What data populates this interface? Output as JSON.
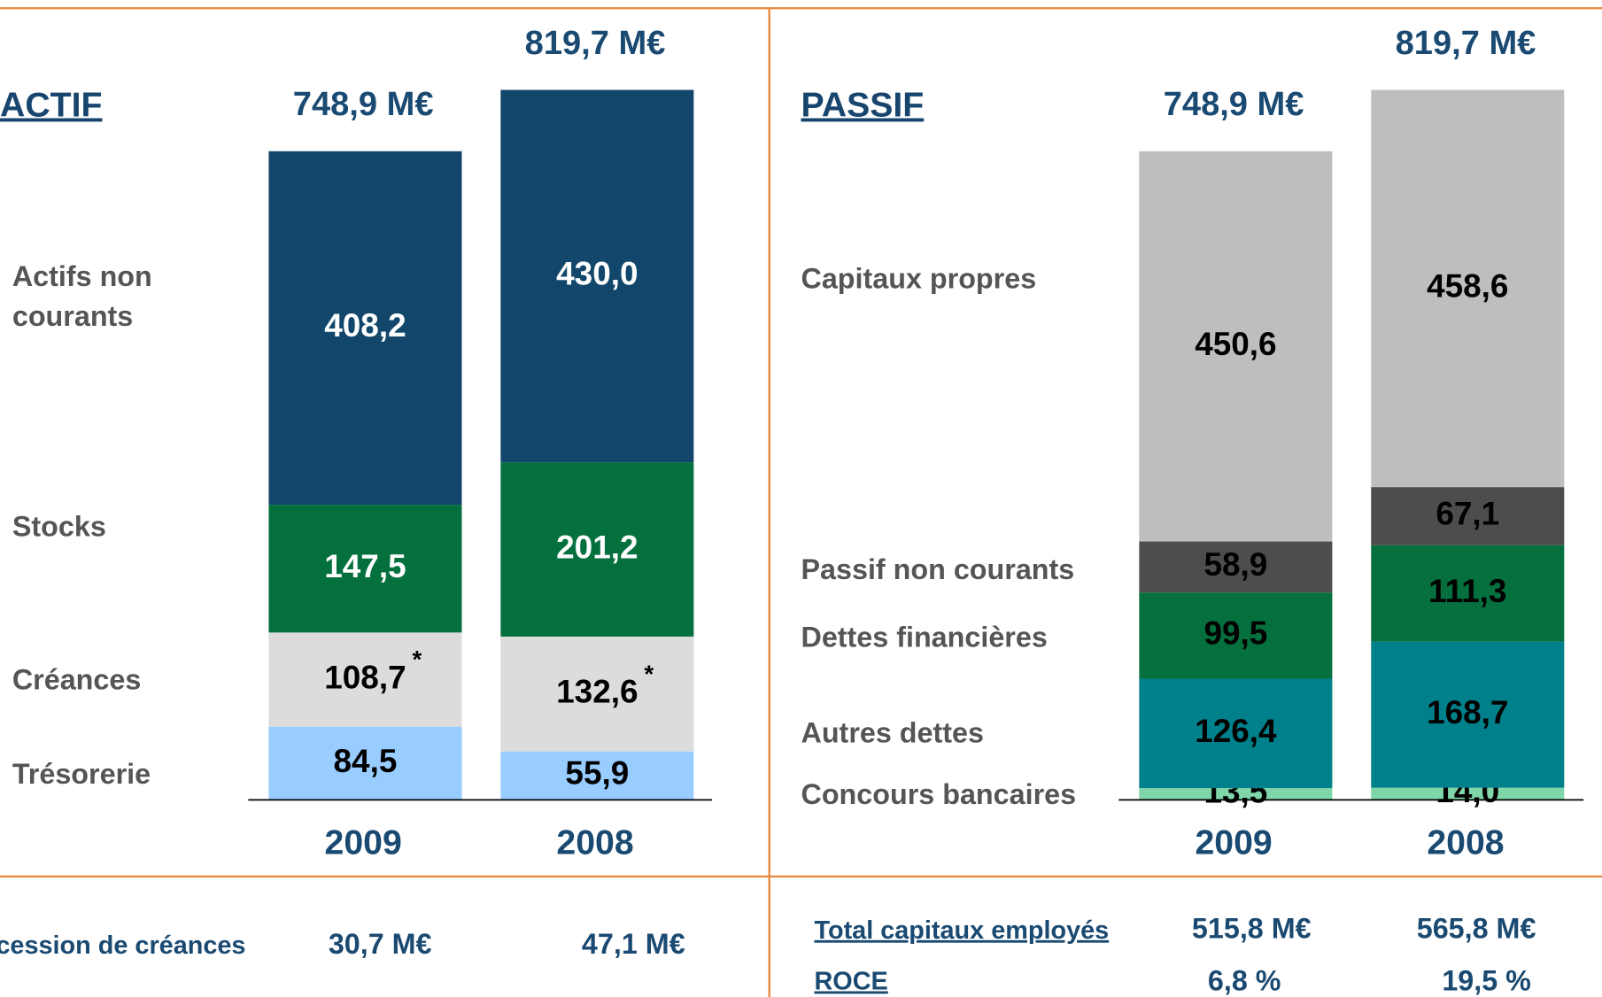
{
  "chart_data": [
    {
      "type": "stacked_bar",
      "title": "ACTIF",
      "categories": [
        "2009",
        "2008"
      ],
      "totals": [
        {
          "value": 748.9,
          "label": "748,9 M€"
        },
        {
          "value": 819.7,
          "label": "819,7 M€"
        }
      ],
      "footnote_marker": "*",
      "series": [
        {
          "name": "Trésorerie",
          "color": "#99ccff",
          "label_color": "#000000",
          "values": [
            84.5,
            55.9
          ],
          "value_labels": [
            "84,5",
            "55,9"
          ]
        },
        {
          "name": "Créances",
          "color": "#dcdcdc",
          "label_color": "#000000",
          "values": [
            108.7,
            132.6
          ],
          "value_labels": [
            "108,7",
            "132,6"
          ],
          "footnote": true
        },
        {
          "name": "Stocks",
          "color": "#04703d",
          "label_color": "#ffffff",
          "values": [
            147.5,
            201.2
          ],
          "value_labels": [
            "147,5",
            "201,2"
          ]
        },
        {
          "name": "Actifs non courants",
          "color": "#12476b",
          "label_color": "#ffffff",
          "values": [
            408.2,
            430.0
          ],
          "value_labels": [
            "408,2",
            "430,0"
          ]
        }
      ]
    },
    {
      "type": "stacked_bar",
      "title": "PASSIF",
      "categories": [
        "2009",
        "2008"
      ],
      "totals": [
        {
          "value": 748.9,
          "label": "748,9 M€"
        },
        {
          "value": 819.7,
          "label": "819,7 M€"
        }
      ],
      "series": [
        {
          "name": "Concours bancaires",
          "color": "#7fd6a8",
          "label_color": "#000000",
          "values": [
            13.5,
            14.0
          ],
          "value_labels": [
            "13,5",
            "14,0"
          ]
        },
        {
          "name": "Autres dettes",
          "color": "#00808a",
          "label_color": "#000000",
          "values": [
            126.4,
            168.7
          ],
          "value_labels": [
            "126,4",
            "168,7"
          ]
        },
        {
          "name": "Dettes financières",
          "color": "#056f3e",
          "label_color": "#000000",
          "values": [
            99.5,
            111.3
          ],
          "value_labels": [
            "99,5",
            "111,3"
          ]
        },
        {
          "name": "Passif non courants",
          "color": "#4d4d4d",
          "label_color": "#000000",
          "values": [
            58.9,
            67.1
          ],
          "value_labels": [
            "58,9",
            "67,1"
          ]
        },
        {
          "name": "Capitaux propres",
          "color": "#bebebe",
          "label_color": "#000000",
          "values": [
            450.6,
            458.6
          ],
          "value_labels": [
            "450,6",
            "458,6"
          ]
        }
      ]
    }
  ],
  "table": {
    "left": {
      "label": "cession de créances",
      "values": [
        "30,7 M€",
        "47,1 M€"
      ]
    },
    "right": [
      {
        "label": "Total capitaux employés",
        "values": [
          "515,8 M€",
          "565,8 M€"
        ]
      },
      {
        "label": "ROCE",
        "values": [
          "6,8 %",
          "19,5 %"
        ]
      }
    ]
  }
}
